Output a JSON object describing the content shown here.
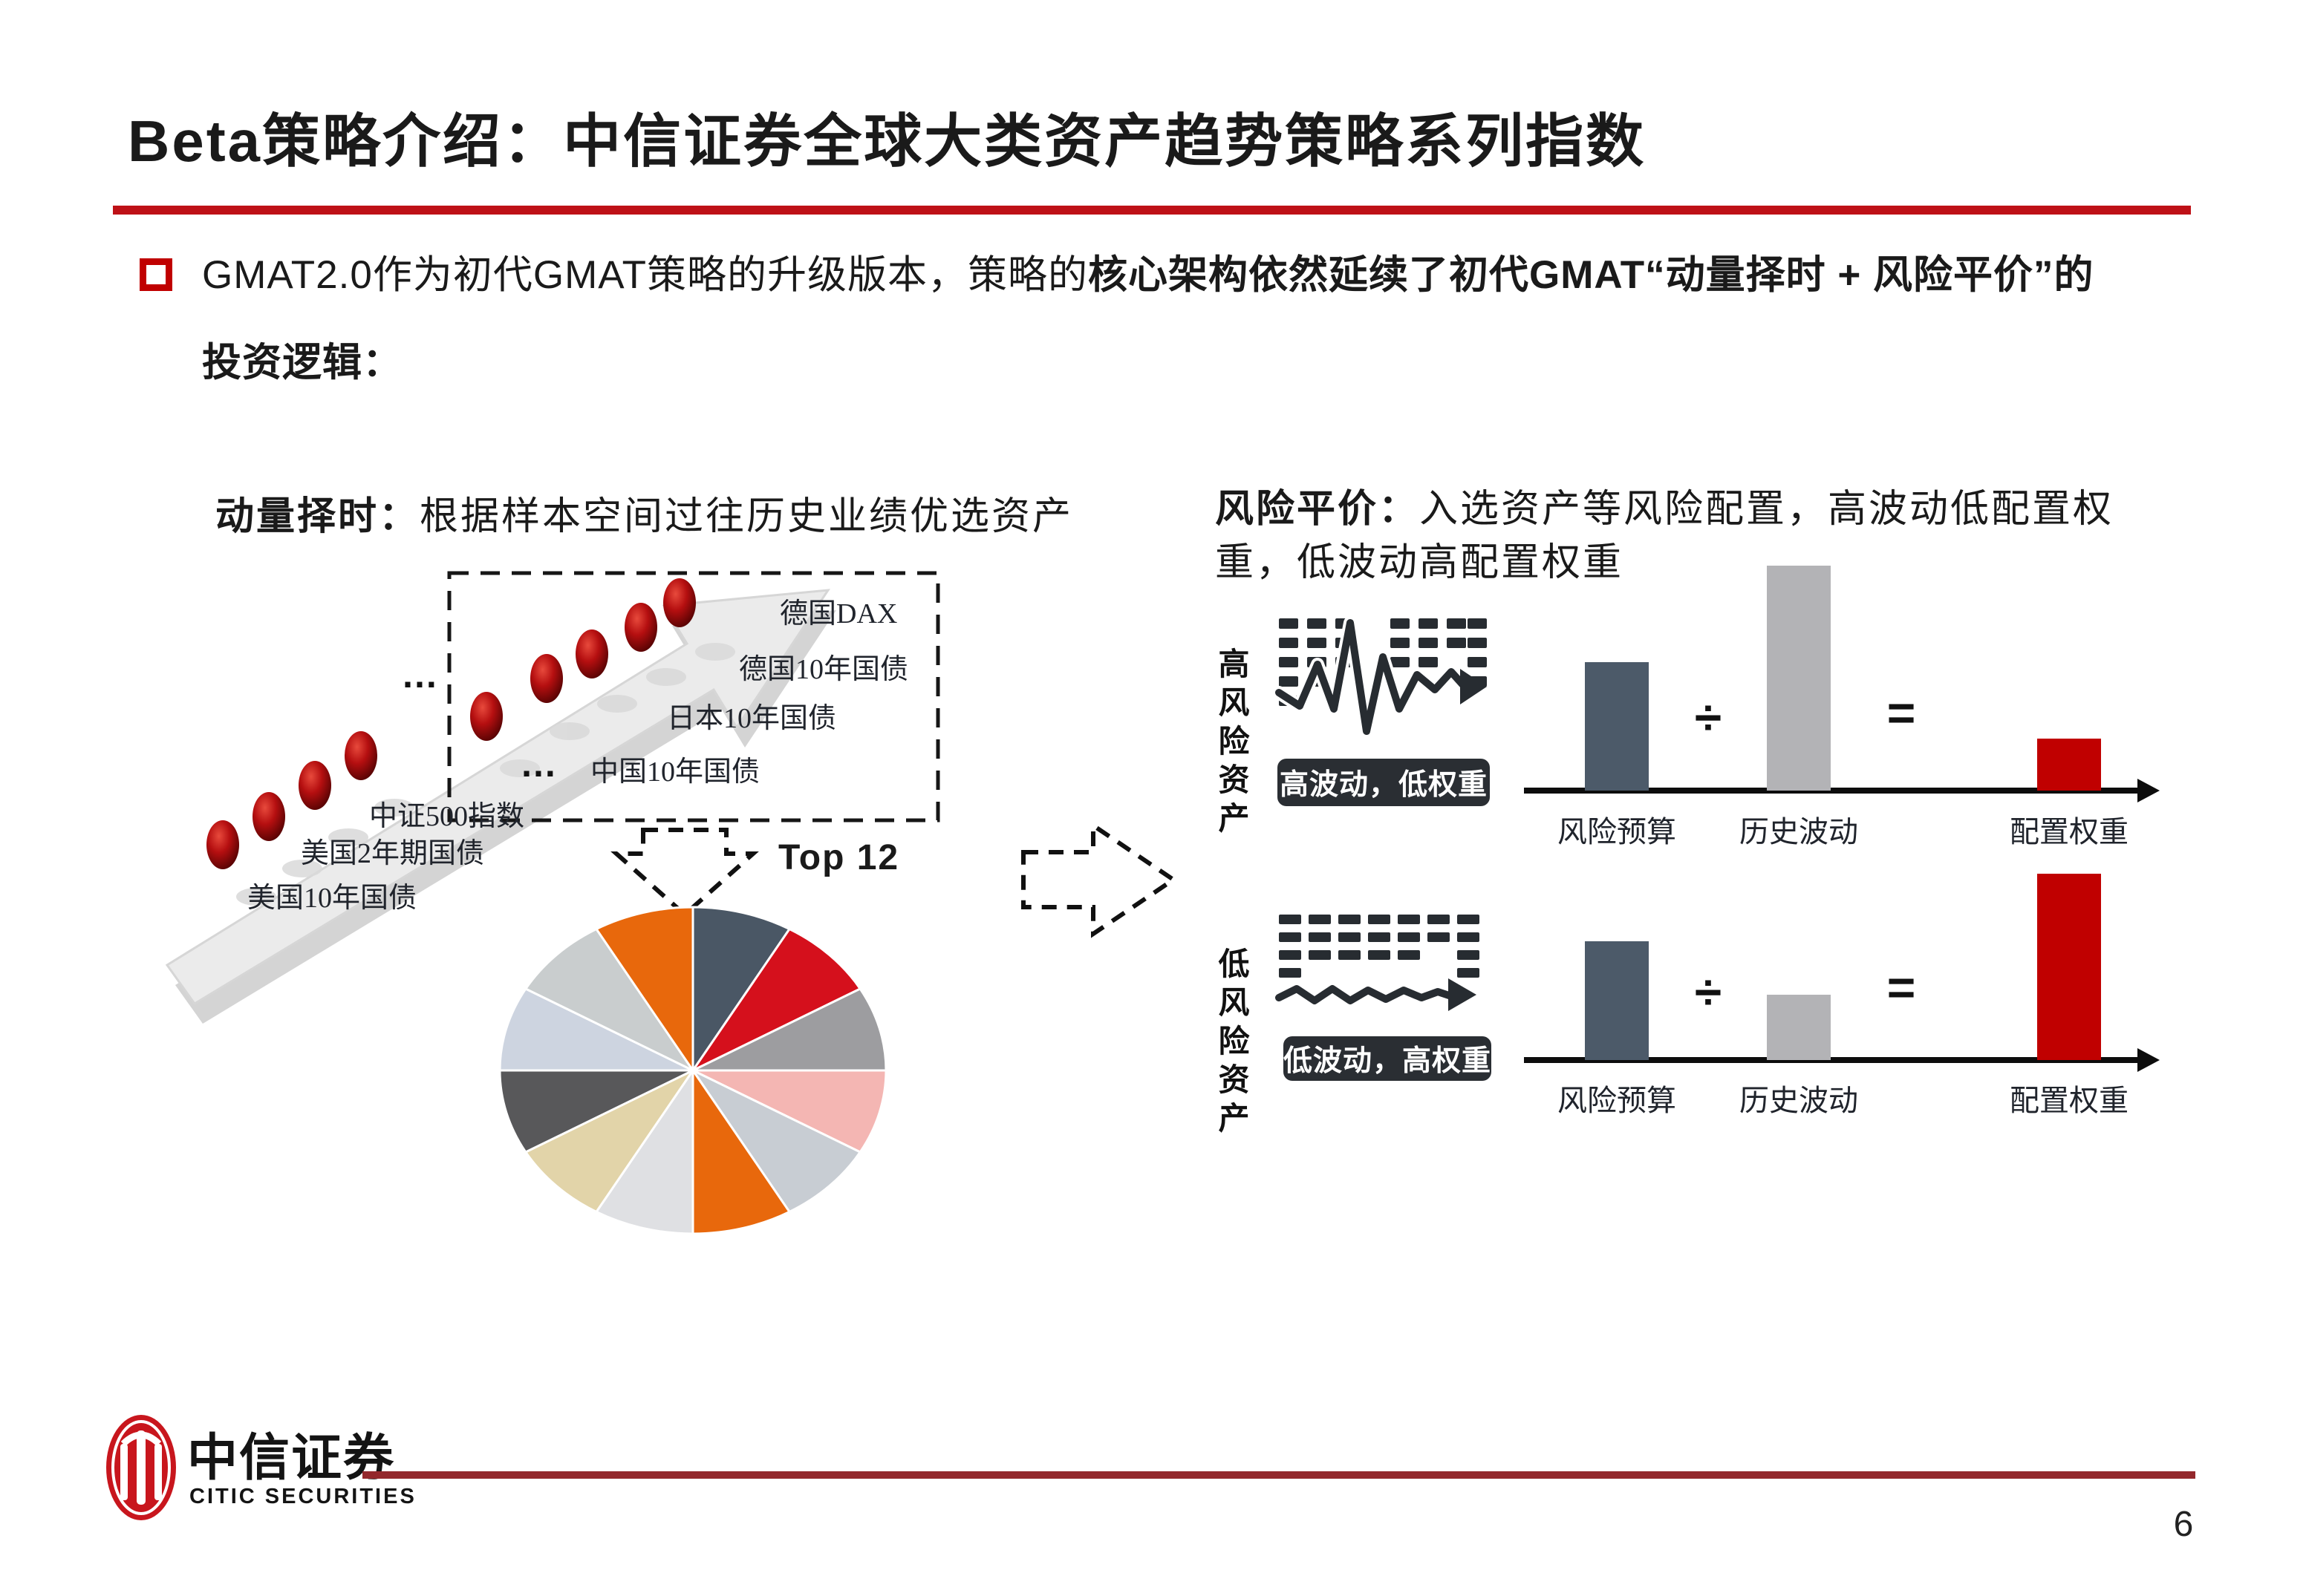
{
  "slide": {
    "title": "Beta策略介绍：中信证券全球大类资产趋势策略系列指数",
    "page_number": "6"
  },
  "bullet": {
    "text_regular": "GMAT2.0作为初代GMAT策略的升级版本，策略的",
    "text_bold": "核心架构依然延续了初代GMAT“动量择时 + 风险平价”的",
    "text_bold_line2": "投资逻辑："
  },
  "momentum": {
    "heading_bold": "动量择时：",
    "heading_rest": "根据样本空间过往历史业绩优选资产",
    "asset_labels": [
      "德国DAX",
      "德国10年国债",
      "日本10年国债",
      "中国10年国债",
      "中证500指数",
      "美国2年期国债",
      "美国10年国债"
    ],
    "ellipsis_upper": "…",
    "ellipsis_lower": "…",
    "top_label": "Top 12"
  },
  "risk_parity": {
    "heading_bold": "风险平价：",
    "heading_rest": "入选资产等风险配置，高波动低配置权重，低波动高配置权重",
    "rows": [
      {
        "side_label": "高风险资产",
        "badge": "高波动，低权重",
        "divide": "÷",
        "equals": "=",
        "x_labels": [
          "风险预算",
          "历史波动",
          "配置权重"
        ]
      },
      {
        "side_label": "低风险资产",
        "badge": "低波动，高权重",
        "divide": "÷",
        "equals": "=",
        "x_labels": [
          "风险预算",
          "历史波动",
          "配置权重"
        ]
      }
    ]
  },
  "footer": {
    "brand_cn": "中信证券",
    "brand_en": "CITIC SECURITIES"
  },
  "colors": {
    "title_rule": "#BE1117",
    "footer_rule": "#93282C",
    "bullet_red": "#C00000",
    "badge_bg": "#2A2E33",
    "icon_ink": "#272C31"
  },
  "chart_data": [
    {
      "type": "pie",
      "annotation": "Top 12",
      "values": [
        1,
        1,
        1,
        1,
        1,
        1,
        1,
        1,
        1,
        1,
        1,
        1
      ],
      "colors": [
        "#4A5765",
        "#D5101C",
        "#9D9DA0",
        "#F4B6B3",
        "#C8CDD3",
        "#E8680C",
        "#DFE0E3",
        "#E2D4A9",
        "#58585A",
        "#CDD4E0",
        "#C9CDCE",
        "#E8680C"
      ],
      "start_angle_deg": -90,
      "clockwise": true,
      "labels_shown": false
    },
    {
      "type": "bar",
      "group": "高风险资产",
      "categories": [
        "风险预算",
        "历史波动",
        "配置权重"
      ],
      "relative_heights": [
        173,
        303,
        70
      ],
      "colors": [
        "#4C5A69",
        "#B3B3B6",
        "#C00000"
      ],
      "annotation": "风险预算 ÷ 历史波动 = 配置权重"
    },
    {
      "type": "bar",
      "group": "低风险资产",
      "categories": [
        "风险预算",
        "历史波动",
        "配置权重"
      ],
      "relative_heights": [
        160,
        88,
        251
      ],
      "colors": [
        "#4C5A69",
        "#B3B3B6",
        "#C00000"
      ],
      "annotation": "风险预算 ÷ 历史波动 = 配置权重"
    }
  ]
}
